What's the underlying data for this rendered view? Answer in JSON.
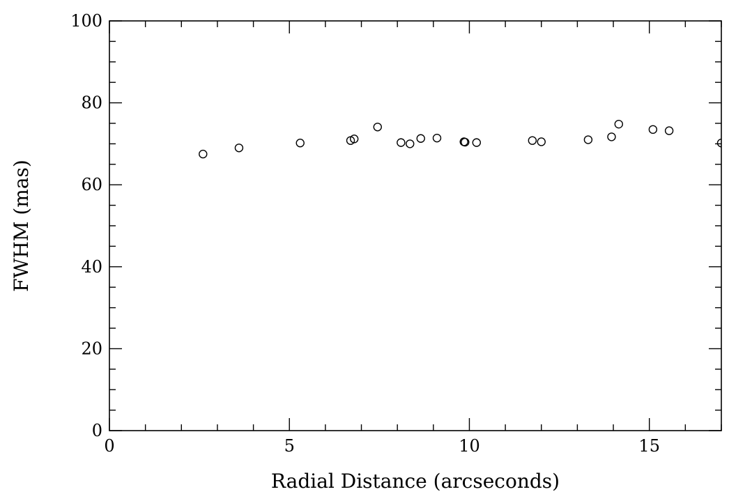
{
  "chart_data": {
    "type": "scatter",
    "xlabel": "Radial Distance (arcseconds)",
    "ylabel": "FWHM (mas)",
    "xlim": [
      0,
      17
    ],
    "ylim": [
      0,
      100
    ],
    "x_ticks": [
      0,
      5,
      10,
      15
    ],
    "x_tick_labels": [
      "0",
      "5",
      "10",
      "15"
    ],
    "y_ticks": [
      0,
      20,
      40,
      60,
      80,
      100
    ],
    "y_tick_labels": [
      "0",
      "20",
      "40",
      "60",
      "80",
      "100"
    ],
    "grid": false,
    "marker": "open-circle",
    "points": [
      {
        "x": 2.6,
        "y": 67.5
      },
      {
        "x": 3.6,
        "y": 69.0
      },
      {
        "x": 5.3,
        "y": 70.2
      },
      {
        "x": 6.7,
        "y": 70.8
      },
      {
        "x": 6.8,
        "y": 71.2
      },
      {
        "x": 7.45,
        "y": 74.1
      },
      {
        "x": 8.1,
        "y": 70.3
      },
      {
        "x": 8.35,
        "y": 70.0
      },
      {
        "x": 8.65,
        "y": 71.3
      },
      {
        "x": 9.1,
        "y": 71.4
      },
      {
        "x": 9.85,
        "y": 70.5
      },
      {
        "x": 9.88,
        "y": 70.4
      },
      {
        "x": 10.2,
        "y": 70.3
      },
      {
        "x": 11.75,
        "y": 70.8
      },
      {
        "x": 12.0,
        "y": 70.5
      },
      {
        "x": 13.3,
        "y": 71.0
      },
      {
        "x": 13.95,
        "y": 71.7
      },
      {
        "x": 14.15,
        "y": 74.8
      },
      {
        "x": 15.1,
        "y": 73.5
      },
      {
        "x": 15.55,
        "y": 73.2
      },
      {
        "x": 17.0,
        "y": 70.2
      }
    ]
  }
}
